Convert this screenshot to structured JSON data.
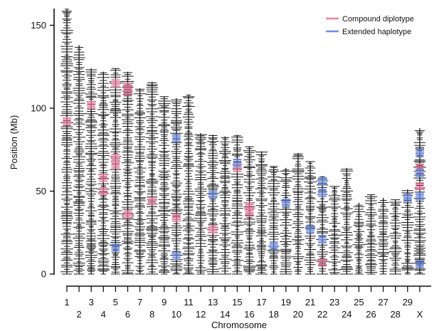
{
  "chart_data": {
    "type": "scatter",
    "title": "",
    "xlabel": "Chromosome",
    "ylabel": "Position (Mb)",
    "ylim": [
      0,
      160
    ],
    "yticks": [
      0,
      50,
      100,
      150
    ],
    "grid": false,
    "legend_position": "top-right",
    "categories": [
      "1",
      "2",
      "3",
      "4",
      "5",
      "6",
      "7",
      "8",
      "9",
      "10",
      "11",
      "12",
      "13",
      "14",
      "15",
      "16",
      "17",
      "18",
      "19",
      "20",
      "21",
      "22",
      "23",
      "24",
      "25",
      "26",
      "27",
      "28",
      "29",
      "X"
    ],
    "chromosome_length_mb": [
      160,
      138,
      124,
      122,
      124,
      122,
      112,
      116,
      107,
      106,
      108,
      85,
      84,
      83,
      84,
      77,
      74,
      65,
      64,
      73,
      68,
      59,
      53,
      64,
      43,
      48,
      46,
      45,
      51,
      88
    ],
    "series": [
      {
        "name": "Compound diplotype",
        "color": "#ee7fa5",
        "points": [
          {
            "chromosome": "1",
            "position_mb": 92
          },
          {
            "chromosome": "3",
            "position_mb": 102
          },
          {
            "chromosome": "4",
            "position_mb": 58
          },
          {
            "chromosome": "4",
            "position_mb": 50
          },
          {
            "chromosome": "5",
            "position_mb": 115
          },
          {
            "chromosome": "5",
            "position_mb": 70
          },
          {
            "chromosome": "5",
            "position_mb": 66
          },
          {
            "chromosome": "6",
            "position_mb": 113
          },
          {
            "chromosome": "6",
            "position_mb": 110
          },
          {
            "chromosome": "6",
            "position_mb": 36
          },
          {
            "chromosome": "8",
            "position_mb": 44
          },
          {
            "chromosome": "10",
            "position_mb": 34
          },
          {
            "chromosome": "13",
            "position_mb": 27
          },
          {
            "chromosome": "15",
            "position_mb": 64
          },
          {
            "chromosome": "16",
            "position_mb": 41
          },
          {
            "chromosome": "16",
            "position_mb": 37
          },
          {
            "chromosome": "22",
            "position_mb": 7
          },
          {
            "chromosome": "X",
            "position_mb": 64
          },
          {
            "chromosome": "X",
            "position_mb": 53
          }
        ]
      },
      {
        "name": "Extended haplotype",
        "color": "#6f8fe6",
        "points": [
          {
            "chromosome": "5",
            "position_mb": 16
          },
          {
            "chromosome": "10",
            "position_mb": 82
          },
          {
            "chromosome": "10",
            "position_mb": 11
          },
          {
            "chromosome": "13",
            "position_mb": 48
          },
          {
            "chromosome": "15",
            "position_mb": 67
          },
          {
            "chromosome": "18",
            "position_mb": 17
          },
          {
            "chromosome": "19",
            "position_mb": 43
          },
          {
            "chromosome": "21",
            "position_mb": 27
          },
          {
            "chromosome": "22",
            "position_mb": 56
          },
          {
            "chromosome": "22",
            "position_mb": 49
          },
          {
            "chromosome": "22",
            "position_mb": 21
          },
          {
            "chromosome": "29",
            "position_mb": 46
          },
          {
            "chromosome": "X",
            "position_mb": 73
          },
          {
            "chromosome": "X",
            "position_mb": 61
          },
          {
            "chromosome": "X",
            "position_mb": 47
          },
          {
            "chromosome": "X",
            "position_mb": 6
          }
        ]
      }
    ]
  }
}
